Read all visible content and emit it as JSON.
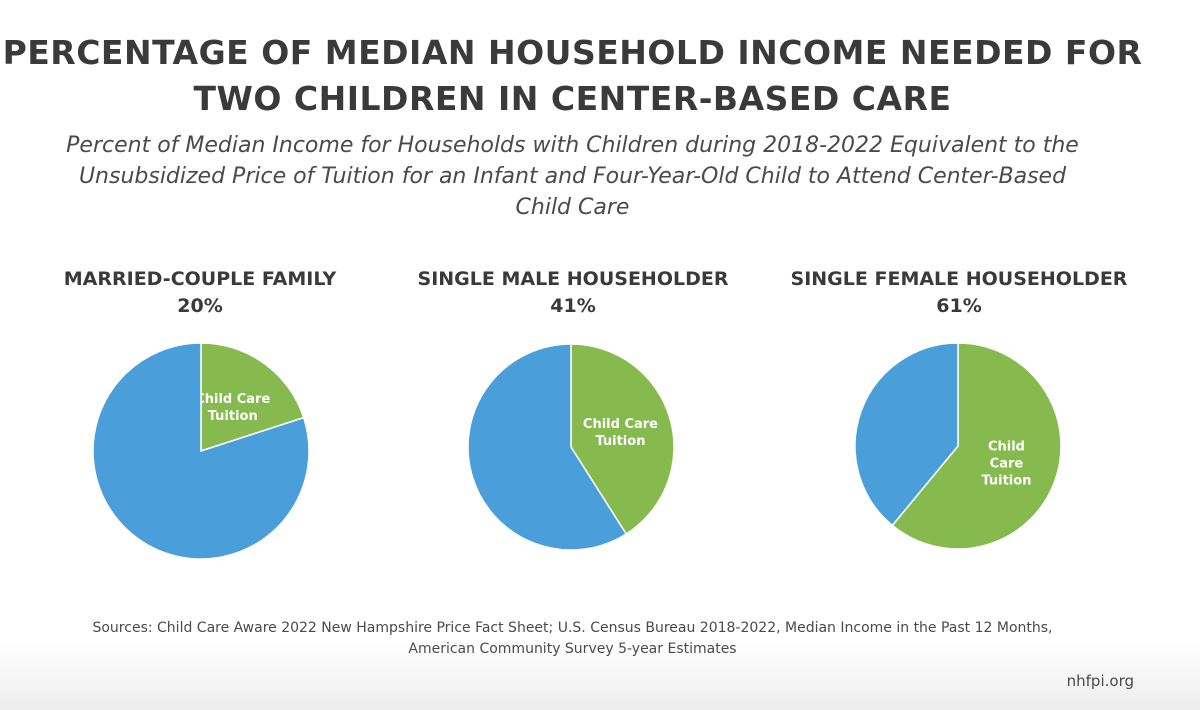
{
  "title_line1": "PERCENTAGE OF MEDIAN HOUSEHOLD INCOME NEEDED FOR",
  "title_line2": "TWO CHILDREN IN CENTER-BASED CARE",
  "subtitle_line1": "Percent of Median Income for Households with Children during 2018-2022 Equivalent to the",
  "subtitle_line2": "Unsubsidized Price of Tuition for an Infant and Four-Year-Old Child to Attend Center-Based",
  "subtitle_line3": "Child Care",
  "sources_line1": "Sources: Child Care Aware 2022 New Hampshire Price Fact Sheet; U.S. Census Bureau 2018-2022, Median Income in the Past 12 Months,",
  "sources_line2": "American Community Survey 5-year Estimates",
  "brand": "nhfpi.org",
  "colors": {
    "tuition": "#86b94e",
    "remainder": "#4a9fda"
  },
  "chart_data": [
    {
      "type": "pie",
      "title": "MARRIED-COUPLE FAMILY",
      "value_label": "20%",
      "slices": [
        {
          "label": "Child Care Tuition",
          "label_lines": [
            "Child Care",
            "Tuition"
          ],
          "value": 20
        },
        {
          "label": "",
          "label_lines": [],
          "value": 80
        }
      ]
    },
    {
      "type": "pie",
      "title": "SINGLE MALE HOUSEHOLDER",
      "value_label": "41%",
      "slices": [
        {
          "label": "Child Care Tuition",
          "label_lines": [
            "Child Care",
            "Tuition"
          ],
          "value": 41
        },
        {
          "label": "",
          "label_lines": [],
          "value": 59
        }
      ]
    },
    {
      "type": "pie",
      "title": "SINGLE FEMALE HOUSEHOLDER",
      "value_label": "61%",
      "slices": [
        {
          "label": "Child Care Tuition",
          "label_lines": [
            "Child",
            "Care",
            "Tuition"
          ],
          "value": 61
        },
        {
          "label": "",
          "label_lines": [],
          "value": 39
        }
      ]
    }
  ]
}
